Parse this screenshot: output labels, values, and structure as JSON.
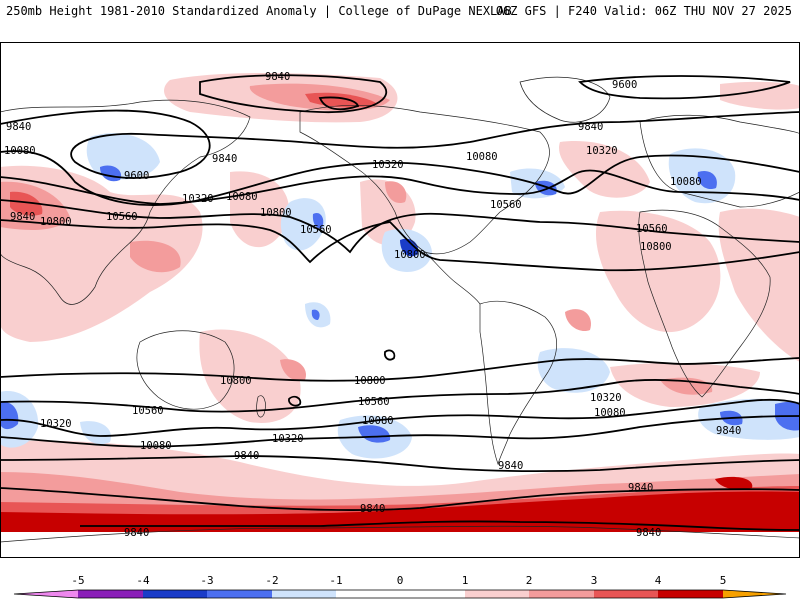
{
  "header": {
    "left_title": "250mb Height 1981-2010 Standardized Anomaly | College of DuPage NEXLAB",
    "right_title": "06Z GFS | F240 Valid: 06Z THU NOV 27 2025"
  },
  "colors": {
    "neg5": "#ee88ee",
    "neg4": "#8a1eb8",
    "neg3": "#1a3cc8",
    "neg2": "#4c6ff0",
    "neg1": "#cfe3fb",
    "zero": "#ffffff",
    "pos1": "#f9cfcf",
    "pos2": "#f39c9c",
    "pos3": "#e85555",
    "pos4": "#c70000",
    "pos5": "#f6a000"
  },
  "colorbar": {
    "ticks": [
      "-5",
      "-4",
      "-3",
      "-2",
      "-1",
      "0",
      "1",
      "2",
      "3",
      "4",
      "5"
    ]
  },
  "contour_labels": [
    "9840",
    "9600",
    "9840",
    "9600",
    "9840",
    "9840",
    "10080",
    "9840",
    "10320",
    "10080",
    "10320",
    "10080",
    "10560",
    "10800",
    "10320",
    "10080",
    "10560",
    "10800",
    "10560",
    "10800",
    "10560",
    "10800",
    "10800",
    "10800",
    "10560",
    "10320",
    "10560",
    "10320",
    "10080",
    "10080",
    "10320",
    "10080",
    "9840",
    "9840",
    "9840",
    "9840",
    "9840",
    "9840",
    "9840"
  ]
}
